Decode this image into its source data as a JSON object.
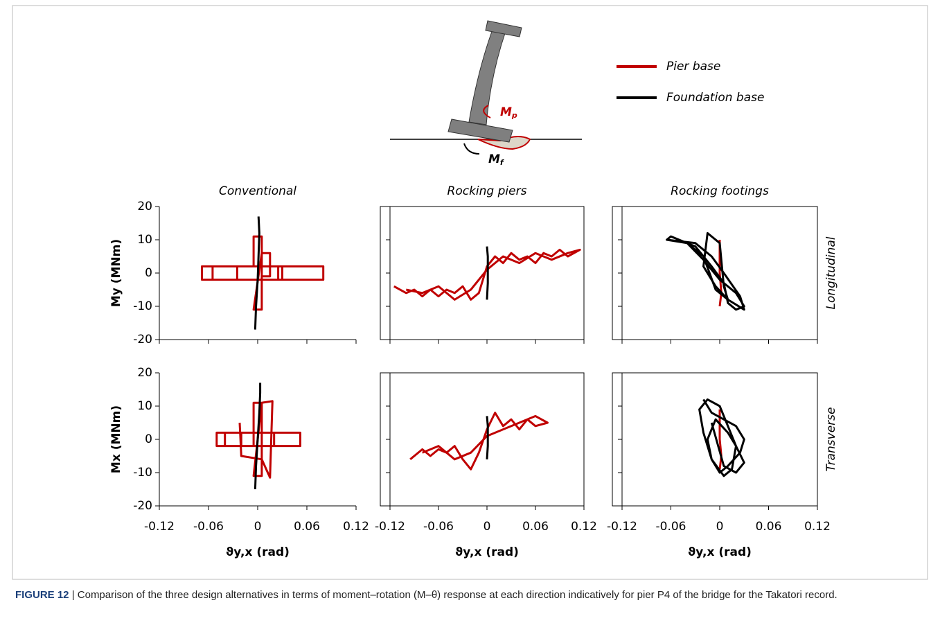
{
  "diagram": {
    "moment_pier": {
      "main": "M",
      "sub": "p"
    },
    "moment_foundation": {
      "main": "M",
      "sub": "f"
    }
  },
  "caption": {
    "label": "FIGURE 12",
    "text": "| Comparison of the three design alternatives in terms of moment–rotation (M–θ) response at each direction indicatively for pier P4 of the bridge for the Takatori record."
  },
  "chart_data": [
    {
      "type": "line",
      "title": "Conventional",
      "ylabel": "My (MNm)",
      "xlim": [
        -0.12,
        0.12
      ],
      "ylim": [
        -20,
        20
      ],
      "xticks": [
        -0.12,
        -0.06,
        0,
        0.06,
        0.12
      ],
      "yticks": [
        -20,
        -10,
        0,
        10,
        20
      ],
      "frame": false,
      "series": [
        {
          "name": "Pier base",
          "color": "#c00000",
          "x": [
            -0.068,
            0.08,
            0.08,
            -0.068,
            -0.068,
            -0.055,
            -0.055,
            -0.025,
            -0.025,
            0.025,
            0.025,
            0.03,
            0.03,
            -0.005,
            -0.005,
            0.005,
            0.005,
            -0.005,
            0.005,
            0.015,
            0.015,
            0.005
          ],
          "values": [
            2,
            2,
            -2,
            -2,
            2,
            2,
            -2,
            -2,
            2,
            2,
            -2,
            -2,
            2,
            2,
            11,
            11,
            -11,
            -11,
            6,
            6,
            -1,
            -1
          ]
        },
        {
          "name": "Foundation base",
          "color": "#000000",
          "x": [
            -0.003,
            -0.002,
            0,
            0.001,
            0.002,
            0.001
          ],
          "values": [
            -17,
            -10,
            -2,
            5,
            12,
            17
          ]
        }
      ]
    },
    {
      "type": "line",
      "title": "Rocking piers",
      "xlim": [
        -0.12,
        0.12
      ],
      "ylim": [
        -20,
        20
      ],
      "xticks": [
        -0.12,
        -0.06,
        0,
        0.06,
        0.12
      ],
      "yticks": [
        -20,
        -10,
        0,
        10,
        20
      ],
      "frame": true,
      "series": [
        {
          "name": "Pier base",
          "color": "#c00000",
          "x": [
            -0.115,
            -0.1,
            -0.09,
            -0.08,
            -0.07,
            -0.06,
            -0.05,
            -0.04,
            -0.03,
            -0.02,
            -0.01,
            0,
            0.01,
            0.02,
            0.03,
            0.04,
            0.05,
            0.06,
            0.07,
            0.08,
            0.09,
            0.1,
            0.115,
            0.1,
            0.08,
            0.06,
            0.04,
            0.02,
            0,
            -0.02,
            -0.04,
            -0.06,
            -0.08,
            -0.1
          ],
          "values": [
            -4,
            -6,
            -5,
            -7,
            -5,
            -7,
            -5,
            -6,
            -4,
            -8,
            -6,
            2,
            5,
            3,
            6,
            4,
            5,
            3,
            6,
            5,
            7,
            5,
            7,
            6,
            4,
            6,
            3,
            5,
            1,
            -5,
            -8,
            -4,
            -6,
            -5
          ]
        },
        {
          "name": "Foundation base",
          "color": "#000000",
          "x": [
            0,
            0.001,
            0.001,
            0
          ],
          "values": [
            -8,
            -3,
            5,
            8
          ]
        }
      ]
    },
    {
      "type": "line",
      "title": "Rocking footings",
      "row_label": "Longitudinal",
      "xlim": [
        -0.12,
        0.12
      ],
      "ylim": [
        -20,
        20
      ],
      "xticks": [
        -0.12,
        -0.06,
        0,
        0.06,
        0.12
      ],
      "yticks": [
        -20,
        -10,
        0,
        10,
        20
      ],
      "frame": true,
      "series": [
        {
          "name": "Pier base",
          "color": "#c00000",
          "x": [
            0,
            0,
            0.002,
            0
          ],
          "values": [
            10,
            0,
            -6,
            -10
          ]
        },
        {
          "name": "Foundation base",
          "color": "#000000",
          "x": [
            -0.065,
            -0.04,
            -0.02,
            0,
            0.02,
            0.03,
            0.02,
            0.01,
            0.005,
            -0.01,
            -0.03,
            -0.06,
            -0.065,
            -0.03,
            -0.01,
            0.005,
            0.025,
            0.03,
            0.01,
            -0.005,
            -0.02,
            -0.015,
            0,
            0.005,
            0.01,
            -0.005,
            -0.02,
            -0.04
          ],
          "values": [
            10,
            9,
            4,
            -2,
            -6,
            -10,
            -11,
            -9,
            -3,
            2,
            8,
            11,
            10,
            9,
            5,
            0,
            -7,
            -11,
            -8,
            -4,
            2,
            12,
            9,
            -4,
            -8,
            -5,
            5,
            9
          ]
        }
      ]
    },
    {
      "type": "line",
      "ylabel": "Mx (MNm)",
      "xlabel": "ϑy,x (rad)",
      "xlim": [
        -0.12,
        0.12
      ],
      "ylim": [
        -20,
        20
      ],
      "xticks": [
        -0.12,
        -0.06,
        0,
        0.06,
        0.12
      ],
      "yticks": [
        -20,
        -10,
        0,
        10,
        20
      ],
      "frame": false,
      "series": [
        {
          "name": "Pier base",
          "color": "#c00000",
          "x": [
            -0.05,
            0.052,
            0.052,
            -0.05,
            -0.05,
            -0.04,
            -0.04,
            -0.02,
            -0.02,
            0.02,
            0.02,
            -0.005,
            -0.005,
            0.005,
            0.005,
            -0.005,
            0.005,
            0.018,
            0.018,
            0.015,
            0.015,
            0.005,
            -0.02,
            -0.022
          ],
          "values": [
            2,
            2,
            -2,
            -2,
            2,
            2,
            -2,
            -2,
            2,
            2,
            -2,
            -2,
            11,
            11,
            -11,
            -11,
            11,
            11.5,
            11.5,
            -11.5,
            -11.5,
            -6,
            -5,
            5
          ]
        },
        {
          "name": "Foundation base",
          "color": "#000000",
          "x": [
            -0.003,
            -0.002,
            0,
            0.002,
            0.003,
            0.003
          ],
          "values": [
            -15,
            -8,
            0,
            8,
            14,
            17
          ]
        }
      ]
    },
    {
      "type": "line",
      "xlabel": "ϑy,x (rad)",
      "xlim": [
        -0.12,
        0.12
      ],
      "ylim": [
        -20,
        20
      ],
      "xticks": [
        -0.12,
        -0.06,
        0,
        0.06,
        0.12
      ],
      "yticks": [
        -20,
        -10,
        0,
        10,
        20
      ],
      "frame": true,
      "series": [
        {
          "name": "Pier base",
          "color": "#c00000",
          "x": [
            -0.095,
            -0.08,
            -0.07,
            -0.06,
            -0.05,
            -0.04,
            -0.03,
            -0.02,
            -0.01,
            0,
            0.01,
            0.02,
            0.03,
            0.04,
            0.05,
            0.06,
            0.075,
            0.06,
            0.04,
            0.02,
            0,
            -0.02,
            -0.04,
            -0.06,
            -0.08
          ],
          "values": [
            -6,
            -3,
            -5,
            -3,
            -4,
            -2,
            -6,
            -9,
            -4,
            3,
            8,
            4,
            6,
            3,
            6,
            4,
            5,
            7,
            5,
            3,
            1,
            -4,
            -6,
            -2,
            -4
          ]
        },
        {
          "name": "Foundation base",
          "color": "#000000",
          "x": [
            0,
            0.001,
            0.001,
            0
          ],
          "values": [
            -6,
            -2,
            4,
            7
          ]
        }
      ]
    },
    {
      "type": "line",
      "xlabel": "ϑy,x (rad)",
      "row_label": "Transverse",
      "xlim": [
        -0.12,
        0.12
      ],
      "ylim": [
        -20,
        20
      ],
      "xticks": [
        -0.12,
        -0.06,
        0,
        0.06,
        0.12
      ],
      "yticks": [
        -20,
        -10,
        0,
        10,
        20
      ],
      "frame": true,
      "series": [
        {
          "name": "Pier base",
          "color": "#c00000",
          "x": [
            0,
            0,
            0.002,
            0
          ],
          "values": [
            9,
            0,
            -5,
            -9
          ]
        },
        {
          "name": "Foundation base",
          "color": "#000000",
          "x": [
            -0.02,
            -0.01,
            0.005,
            0.02,
            0.03,
            0.025,
            0.01,
            0,
            -0.01,
            -0.015,
            -0.005,
            0.01,
            0.02,
            0.015,
            0.005,
            -0.01,
            -0.02,
            -0.025,
            -0.015,
            0.0,
            0.01,
            0.02,
            0.03,
            0.02,
            0.005,
            -0.01
          ],
          "values": [
            12,
            8,
            6,
            4,
            0,
            -4,
            -8,
            -10,
            -6,
            0,
            6,
            2,
            -2,
            -9,
            -11,
            -6,
            2,
            9,
            12,
            10,
            4,
            -2,
            -7,
            -10,
            -8,
            5
          ]
        }
      ]
    }
  ]
}
